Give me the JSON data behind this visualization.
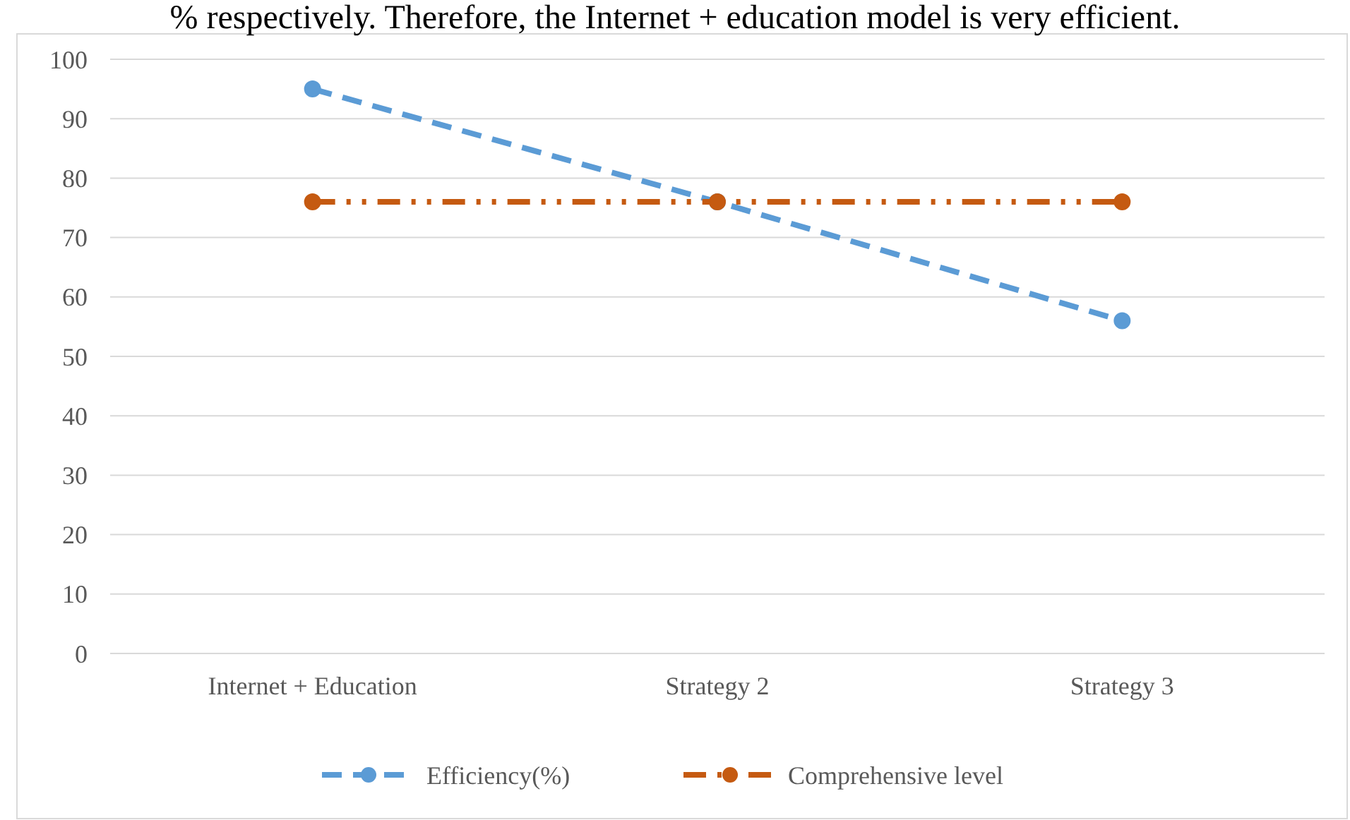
{
  "chart_data": {
    "type": "line",
    "annotations": [
      "% respectively. Therefore, the Internet + education model is very efficient."
    ],
    "categories": [
      "Internet + Education",
      "Strategy 2",
      "Strategy 3"
    ],
    "series": [
      {
        "name": "Efficiency(%)",
        "color": "#5b9bd5",
        "values": [
          95,
          76,
          56
        ],
        "line_style": "dashed"
      },
      {
        "name": "Comprehensive level",
        "color": "#c55a11",
        "values": [
          76,
          76,
          76
        ],
        "line_style": "dotted"
      }
    ],
    "ylim": [
      0,
      100
    ],
    "yticks": [
      0,
      10,
      20,
      30,
      40,
      50,
      60,
      70,
      80,
      90,
      100
    ],
    "grid": "y",
    "legend": "bottom",
    "marker": "circle"
  }
}
